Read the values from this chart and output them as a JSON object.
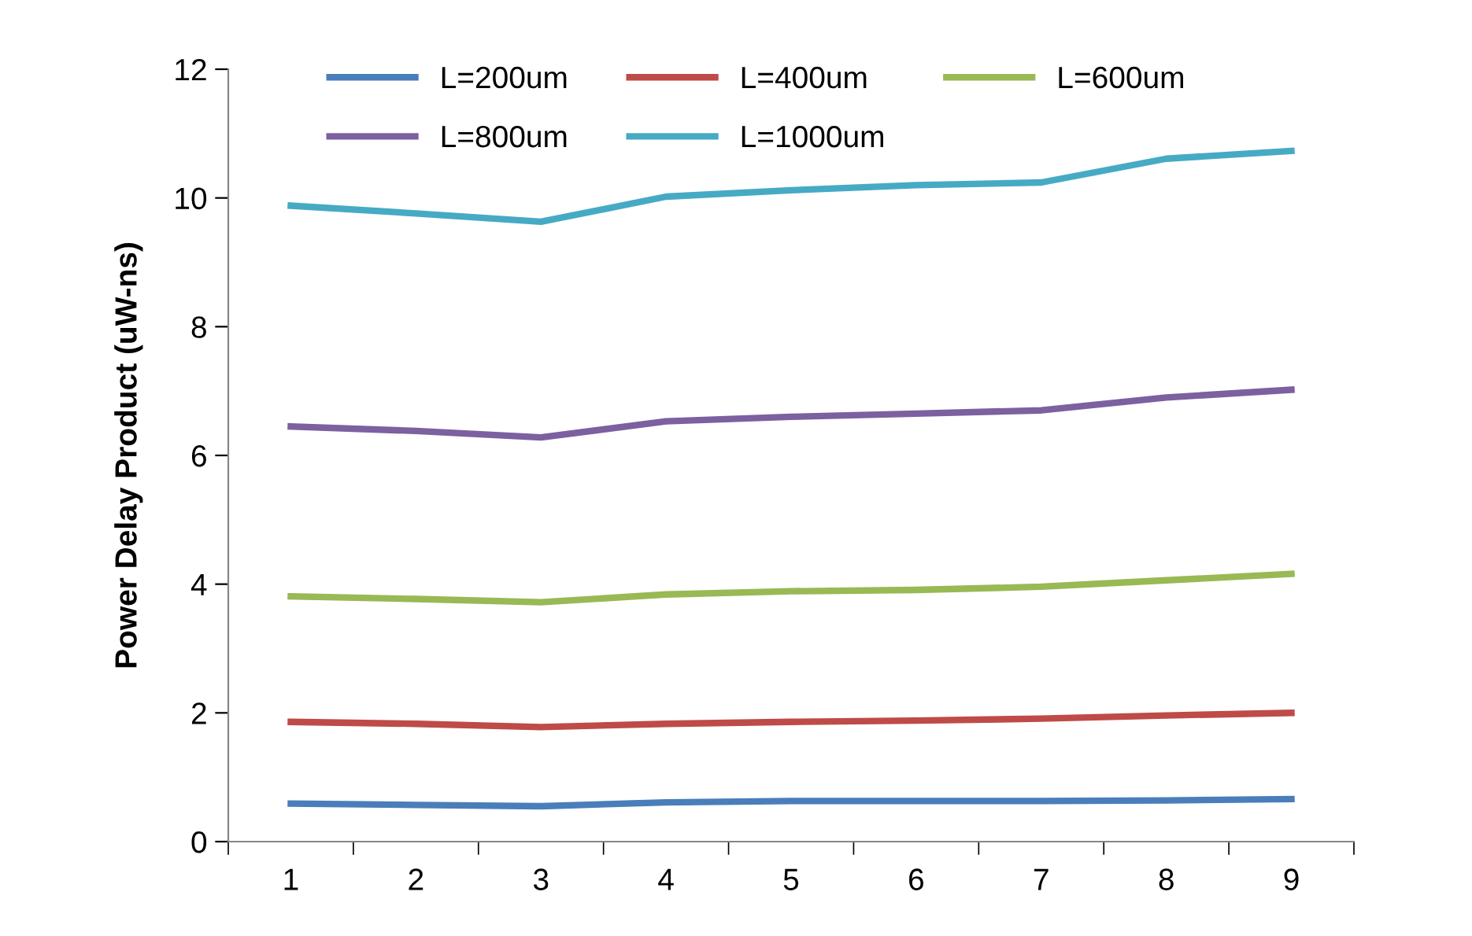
{
  "chart_data": {
    "type": "line",
    "ylabel": "Power Delay Product (uW-ns)",
    "categories": [
      "1",
      "2",
      "3",
      "4",
      "5",
      "6",
      "7",
      "8",
      "9"
    ],
    "series": [
      {
        "name": "L=200um",
        "color": "#4a7ebb",
        "values": [
          0.59,
          0.57,
          0.55,
          0.61,
          0.63,
          0.63,
          0.63,
          0.64,
          0.66
        ]
      },
      {
        "name": "L=400um",
        "color": "#be4b48",
        "values": [
          1.86,
          1.83,
          1.78,
          1.83,
          1.86,
          1.88,
          1.91,
          1.96,
          2.0
        ]
      },
      {
        "name": "L=600um",
        "color": "#98b954",
        "values": [
          3.81,
          3.77,
          3.72,
          3.84,
          3.89,
          3.91,
          3.96,
          4.06,
          4.16
        ]
      },
      {
        "name": "L=800um",
        "color": "#7d60a0",
        "values": [
          6.45,
          6.38,
          6.28,
          6.53,
          6.6,
          6.65,
          6.7,
          6.9,
          7.02
        ]
      },
      {
        "name": "L=1000um",
        "color": "#46aac5",
        "values": [
          9.88,
          9.76,
          9.63,
          10.02,
          10.12,
          10.2,
          10.24,
          10.61,
          10.73
        ]
      }
    ],
    "ylim": [
      0,
      12
    ],
    "yticks": [
      0,
      2,
      4,
      6,
      8,
      10,
      12
    ],
    "grid": false,
    "legend": "top",
    "marker": "none",
    "line_style": "solid"
  }
}
